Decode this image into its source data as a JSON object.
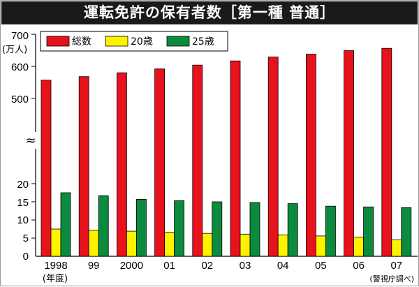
{
  "chart_data": {
    "type": "bar",
    "title": "運転免許の保有者数［第一種 普通］",
    "unit_label": "(万人)",
    "year_label": "(年度)",
    "source": "(警視庁調べ)",
    "categories": [
      "1998",
      "99",
      "2000",
      "01",
      "02",
      "03",
      "04",
      "05",
      "06",
      "07"
    ],
    "series": [
      {
        "name": "総数",
        "color": "#e8121c",
        "values": [
          557,
          568,
          580,
          592,
          604,
          617,
          629,
          638,
          649,
          656
        ]
      },
      {
        "name": "20歳",
        "color": "#fff200",
        "values": [
          7.5,
          7.2,
          6.9,
          6.6,
          6.3,
          6.1,
          5.9,
          5.6,
          5.3,
          4.5
        ]
      },
      {
        "name": "25歳",
        "color": "#0c8a3e",
        "values": [
          17.5,
          16.7,
          15.7,
          15.3,
          15.0,
          14.8,
          14.5,
          13.8,
          13.6,
          13.4
        ]
      }
    ],
    "y_ticks_upper": [
      "700",
      "600",
      "500"
    ],
    "y_ticks_lower": [
      "20",
      "15",
      "10",
      "5",
      "0"
    ],
    "y_upper_range": [
      490,
      700
    ],
    "y_lower_range": [
      0,
      20
    ],
    "break_symbol": "≈"
  }
}
